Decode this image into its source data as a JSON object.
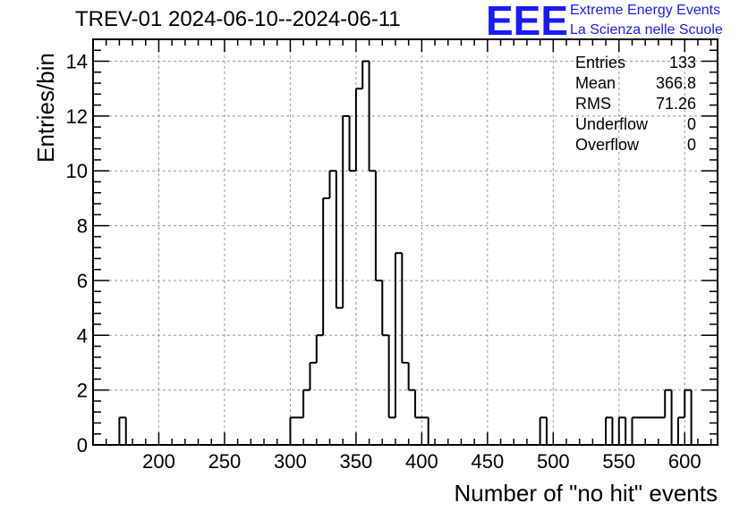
{
  "chart_data": {
    "type": "bar",
    "title": "TREV-01 2024-06-10--2024-06-11",
    "xlabel": "Number of \"no hit\" events",
    "ylabel": "Entries/bin",
    "xlim": [
      150,
      625
    ],
    "ylim": [
      0,
      14.8
    ],
    "grid": true,
    "bin_width": 5,
    "x_ticks": [
      200,
      250,
      300,
      350,
      400,
      450,
      500,
      550,
      600
    ],
    "y_ticks": [
      0,
      2,
      4,
      6,
      8,
      10,
      12,
      14
    ],
    "bins": [
      {
        "x": 170,
        "value": 1
      },
      {
        "x": 300,
        "value": 1
      },
      {
        "x": 305,
        "value": 1
      },
      {
        "x": 310,
        "value": 2
      },
      {
        "x": 315,
        "value": 3
      },
      {
        "x": 320,
        "value": 4
      },
      {
        "x": 325,
        "value": 9
      },
      {
        "x": 330,
        "value": 10
      },
      {
        "x": 335,
        "value": 5
      },
      {
        "x": 340,
        "value": 12
      },
      {
        "x": 345,
        "value": 10
      },
      {
        "x": 350,
        "value": 13
      },
      {
        "x": 355,
        "value": 14
      },
      {
        "x": 360,
        "value": 10
      },
      {
        "x": 365,
        "value": 6
      },
      {
        "x": 370,
        "value": 4
      },
      {
        "x": 375,
        "value": 1
      },
      {
        "x": 380,
        "value": 7
      },
      {
        "x": 385,
        "value": 3
      },
      {
        "x": 390,
        "value": 2
      },
      {
        "x": 395,
        "value": 1
      },
      {
        "x": 400,
        "value": 1
      },
      {
        "x": 490,
        "value": 1
      },
      {
        "x": 540,
        "value": 1
      },
      {
        "x": 550,
        "value": 1
      },
      {
        "x": 560,
        "value": 1
      },
      {
        "x": 565,
        "value": 1
      },
      {
        "x": 570,
        "value": 1
      },
      {
        "x": 575,
        "value": 1
      },
      {
        "x": 580,
        "value": 1
      },
      {
        "x": 585,
        "value": 2
      },
      {
        "x": 595,
        "value": 1
      },
      {
        "x": 600,
        "value": 2
      }
    ],
    "stats": [
      {
        "label": "Entries",
        "value": "133"
      },
      {
        "label": "Mean",
        "value": "366.8"
      },
      {
        "label": "RMS",
        "value": "71.26"
      },
      {
        "label": "Underflow",
        "value": "0"
      },
      {
        "label": "Overflow",
        "value": "0"
      }
    ],
    "line_color": "#000000",
    "grid_color": "#9a9a9a"
  },
  "logo": {
    "mark": "EEE",
    "line1": "Extreme Energy Events",
    "line2": "La Scienza nelle Scuole",
    "color": "#1a1aff"
  }
}
